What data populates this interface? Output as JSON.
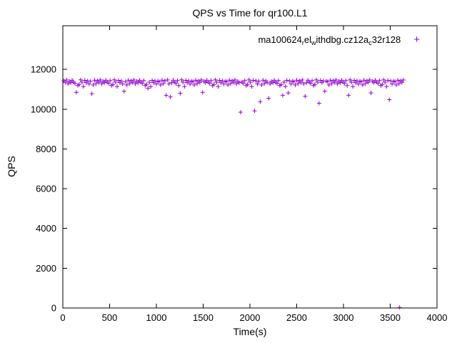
{
  "legend": {
    "series_name": "ma100624_rel_withdbg.cz12a_c32r128",
    "parts": [
      {
        "t": "ma100624"
      },
      {
        "t": "r",
        "sub": true
      },
      {
        "t": "el"
      },
      {
        "t": "w",
        "sub": true
      },
      {
        "t": "ithdbg.cz12a"
      },
      {
        "t": "c",
        "sub": true
      },
      {
        "t": "32r128"
      }
    ],
    "marker": "+",
    "color": "#9400D3"
  },
  "chart_data": {
    "type": "scatter",
    "title": "QPS vs Time for qr100.L1",
    "xlabel": "Time(s)",
    "ylabel": "QPS",
    "xlim": [
      0,
      4000
    ],
    "ylim": [
      0,
      14200
    ],
    "xticks": [
      0,
      500,
      1000,
      1500,
      2000,
      2500,
      3000,
      3500,
      4000
    ],
    "yticks": [
      0,
      2000,
      4000,
      6000,
      8000,
      10000,
      12000
    ],
    "grid": false,
    "legend_position": "top-right-inside",
    "series": [
      {
        "name": "ma100624_rel_withdbg.cz12a_c32r128",
        "color": "#9400D3",
        "marker": "plus",
        "x_start": 10,
        "x_step": 15,
        "y": [
          11430,
          11350,
          11470,
          11280,
          11400,
          11330,
          11460,
          11370,
          11300,
          10850,
          11190,
          11250,
          11480,
          11360,
          11140,
          11450,
          11340,
          11420,
          11270,
          11410,
          10780,
          11220,
          11460,
          11290,
          11430,
          11350,
          11470,
          11280,
          11400,
          11330,
          11460,
          11370,
          11300,
          11440,
          11190,
          11250,
          11480,
          11360,
          11140,
          11450,
          11340,
          11420,
          11270,
          10900,
          11380,
          11220,
          11460,
          11290,
          11430,
          11350,
          11470,
          11280,
          11400,
          11330,
          11460,
          11370,
          11300,
          11440,
          11190,
          11250,
          11050,
          11360,
          11140,
          11450,
          11340,
          11420,
          11270,
          11410,
          11380,
          11220,
          11460,
          11290,
          11430,
          10700,
          11470,
          11280,
          10620,
          11330,
          11460,
          11370,
          11300,
          11440,
          11190,
          10800,
          11480,
          11360,
          11140,
          11450,
          11340,
          11420,
          11270,
          11410,
          11380,
          11220,
          11460,
          11290,
          11430,
          11350,
          11470,
          10850,
          11400,
          11330,
          11460,
          11370,
          11300,
          11440,
          11190,
          11250,
          11480,
          11360,
          11140,
          11450,
          11340,
          11420,
          11270,
          11410,
          11380,
          11220,
          11460,
          11290,
          11430,
          11350,
          11470,
          11280,
          11400,
          11330,
          9850,
          11370,
          11300,
          11440,
          11190,
          11250,
          11480,
          11360,
          11140,
          11450,
          9920,
          11420,
          11270,
          11410,
          10380,
          11220,
          11460,
          11290,
          11430,
          11350,
          10550,
          11280,
          11400,
          11330,
          11460,
          11370,
          11300,
          11440,
          11190,
          11250,
          10700,
          11360,
          11140,
          11450,
          10820,
          11420,
          11270,
          11410,
          11380,
          11220,
          11460,
          11290,
          11430,
          11350,
          11470,
          11280,
          10650,
          11330,
          11460,
          11370,
          11300,
          11440,
          11190,
          11250,
          11480,
          11360,
          10300,
          11450,
          11340,
          11420,
          10900,
          11410,
          11380,
          11220,
          11460,
          11290,
          11430,
          11350,
          11470,
          11280,
          11400,
          11330,
          11460,
          11370,
          11300,
          11440,
          11190,
          10700,
          11480,
          11360,
          11140,
          11450,
          11340,
          11420,
          11270,
          11410,
          11380,
          11220,
          11460,
          11290,
          11430,
          11350,
          11470,
          10820,
          11400,
          11330,
          11460,
          11370,
          11300,
          11440,
          11190,
          11250,
          11480,
          11360,
          11140,
          11450,
          10480,
          11420,
          11270,
          11410,
          11380,
          11220,
          11460,
          11290,
          11430,
          11350,
          11470
        ],
        "extra_points": [
          [
            3600,
            30
          ]
        ]
      }
    ]
  }
}
